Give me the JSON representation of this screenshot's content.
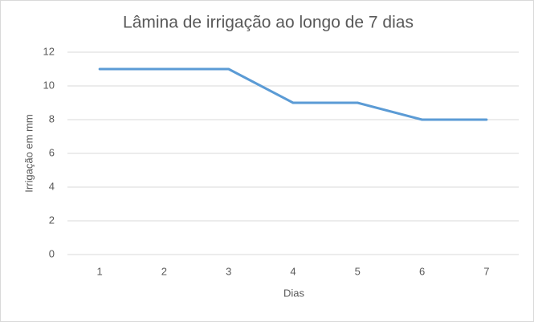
{
  "chart_data": {
    "type": "line",
    "title": "Lâmina de irrigação ao longo de 7 dias",
    "x_label": "Dias",
    "y_label": "Irrigação em mm",
    "categories": [
      "1",
      "2",
      "3",
      "4",
      "5",
      "6",
      "7"
    ],
    "values": [
      11,
      11,
      11,
      9,
      9,
      8,
      8
    ],
    "color": "#5b9bd5",
    "ylim": [
      0,
      12
    ],
    "yticks": [
      0,
      2,
      4,
      6,
      8,
      10,
      12
    ],
    "grid": true
  }
}
